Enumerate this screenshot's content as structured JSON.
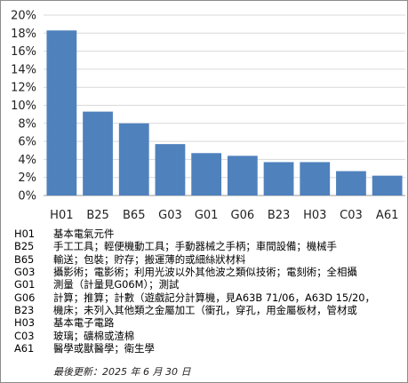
{
  "chart_data": {
    "type": "bar",
    "categories": [
      "H01",
      "B25",
      "B65",
      "G03",
      "G01",
      "G06",
      "B23",
      "H03",
      "C03",
      "A61"
    ],
    "values": [
      18.3,
      9.3,
      8.0,
      5.7,
      4.7,
      4.4,
      3.7,
      3.7,
      2.7,
      2.2
    ],
    "ylim": [
      0,
      20
    ],
    "yticks": [
      "0%",
      "2%",
      "4%",
      "6%",
      "8%",
      "10%",
      "12%",
      "14%",
      "16%",
      "18%",
      "20%"
    ],
    "grid": true,
    "bar_color": "#4f81bd"
  },
  "legend": [
    {
      "code": "H01",
      "text": "基本電氣元件"
    },
    {
      "code": "B25",
      "text": "手工工具；輕便機動工具；手動器械之手柄；車間設備；機械手"
    },
    {
      "code": "B65",
      "text": "輸送；包裝；貯存；搬運薄的或細絲狀材料"
    },
    {
      "code": "G03",
      "text": "攝影術；電影術；利用光波以外其他波之類似技術；電刻術；全相攝"
    },
    {
      "code": "G01",
      "text": "測量（計量見G06M）；測試"
    },
    {
      "code": "G06",
      "text": "計算；推算；計數（遊戲記分計算機，見A63B 71/06，A63D 15/20，"
    },
    {
      "code": "B23",
      "text": "機床；未列入其他類之金屬加工（衝孔，穿孔，用金屬板材，管材或"
    },
    {
      "code": "H03",
      "text": "基本電子電路"
    },
    {
      "code": "C03",
      "text": "玻璃；礦棉或渣棉"
    },
    {
      "code": "A61",
      "text": "醫學或獸醫學；衛生學"
    }
  ],
  "footer": "最後更新：2025 年 6 月 30 日"
}
